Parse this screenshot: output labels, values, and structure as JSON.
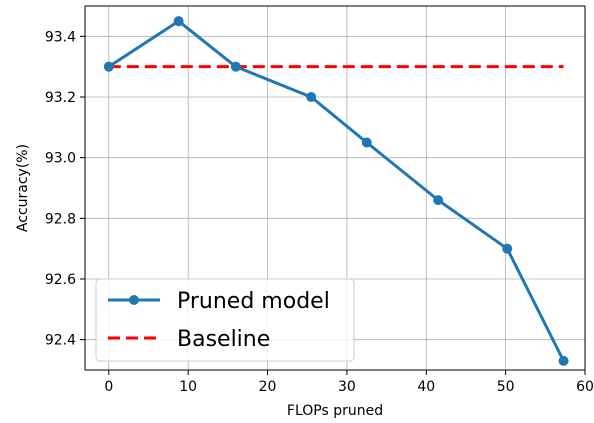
{
  "chart_data": {
    "type": "line",
    "title": "",
    "xlabel": "FLOPs pruned",
    "ylabel": "Accuracy(%)",
    "xlim": [
      -3,
      60
    ],
    "ylim": [
      92.3,
      93.5
    ],
    "xticks": [
      0,
      10,
      20,
      30,
      40,
      50,
      60
    ],
    "yticks": [
      92.4,
      92.6,
      92.8,
      93.0,
      93.2,
      93.4
    ],
    "ytick_labels": [
      "92.4",
      "92.6",
      "92.8",
      "93.0",
      "93.2",
      "93.4"
    ],
    "grid": true,
    "legend_position": "lower-left",
    "series": [
      {
        "name": "Pruned model",
        "style": "solid-with-markers",
        "color": "#1f77b4",
        "x": [
          0,
          8.8,
          16,
          25.5,
          32.5,
          41.5,
          50.2,
          57.3
        ],
        "y": [
          93.3,
          93.45,
          93.3,
          93.2,
          93.05,
          92.86,
          92.7,
          92.33
        ]
      },
      {
        "name": "Baseline",
        "style": "dashed",
        "color": "#ff0000",
        "x": [
          0,
          57.3
        ],
        "y": [
          93.3,
          93.3
        ]
      }
    ]
  }
}
